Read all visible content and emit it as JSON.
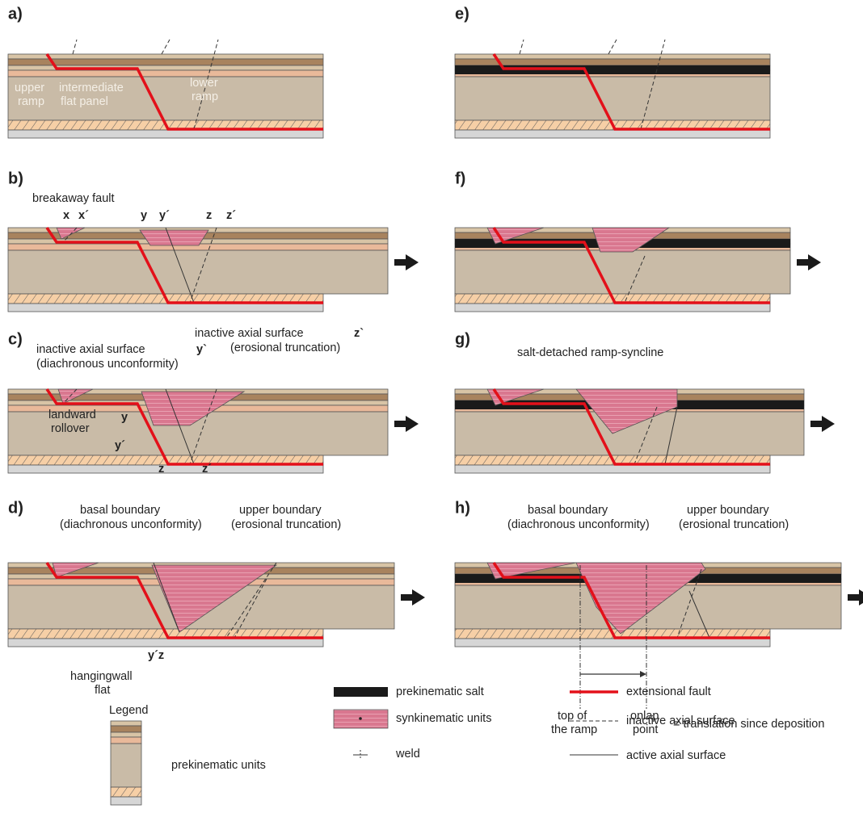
{
  "panels": [
    {
      "label": "a)",
      "notes": [
        "upper",
        "ramp",
        "intermediate",
        "flat panel",
        "lower",
        "ramp"
      ]
    },
    {
      "label": "b)",
      "notes": [
        "breakaway fault",
        "x",
        "x´",
        "y",
        "y´",
        "z",
        "z´"
      ]
    },
    {
      "label": "c)",
      "notes": [
        "inactive axial surface",
        "y`",
        "(diachronous unconformity)",
        "inactive axial surface",
        "z`",
        "(erosional truncation)",
        "landward",
        "rollover",
        "y",
        "y´",
        "z",
        "z´"
      ]
    },
    {
      "label": "d)",
      "notes": [
        "basal  boundary",
        "(diachronous unconformity)",
        "upper boundary",
        "(erosional truncation)",
        "hangingwall",
        "flat",
        "y´z"
      ]
    },
    {
      "label": "e)"
    },
    {
      "label": "f)"
    },
    {
      "label": "g)",
      "notes": [
        "salt-detached ramp-syncline"
      ]
    },
    {
      "label": "h)",
      "notes": [
        "basal  boundary",
        "(diachronous unconformity)",
        "upper boundary",
        "(erosional truncation)",
        "top of",
        "the ramp",
        "onlap",
        "point",
        "= translation since deposition"
      ]
    }
  ],
  "legend": {
    "title": "Legend",
    "items": [
      "prekinematic units",
      "prekinematic salt",
      "synkinematic units",
      "weld",
      "extensional fault",
      "inactive axial surface",
      "active axial surface"
    ]
  }
}
